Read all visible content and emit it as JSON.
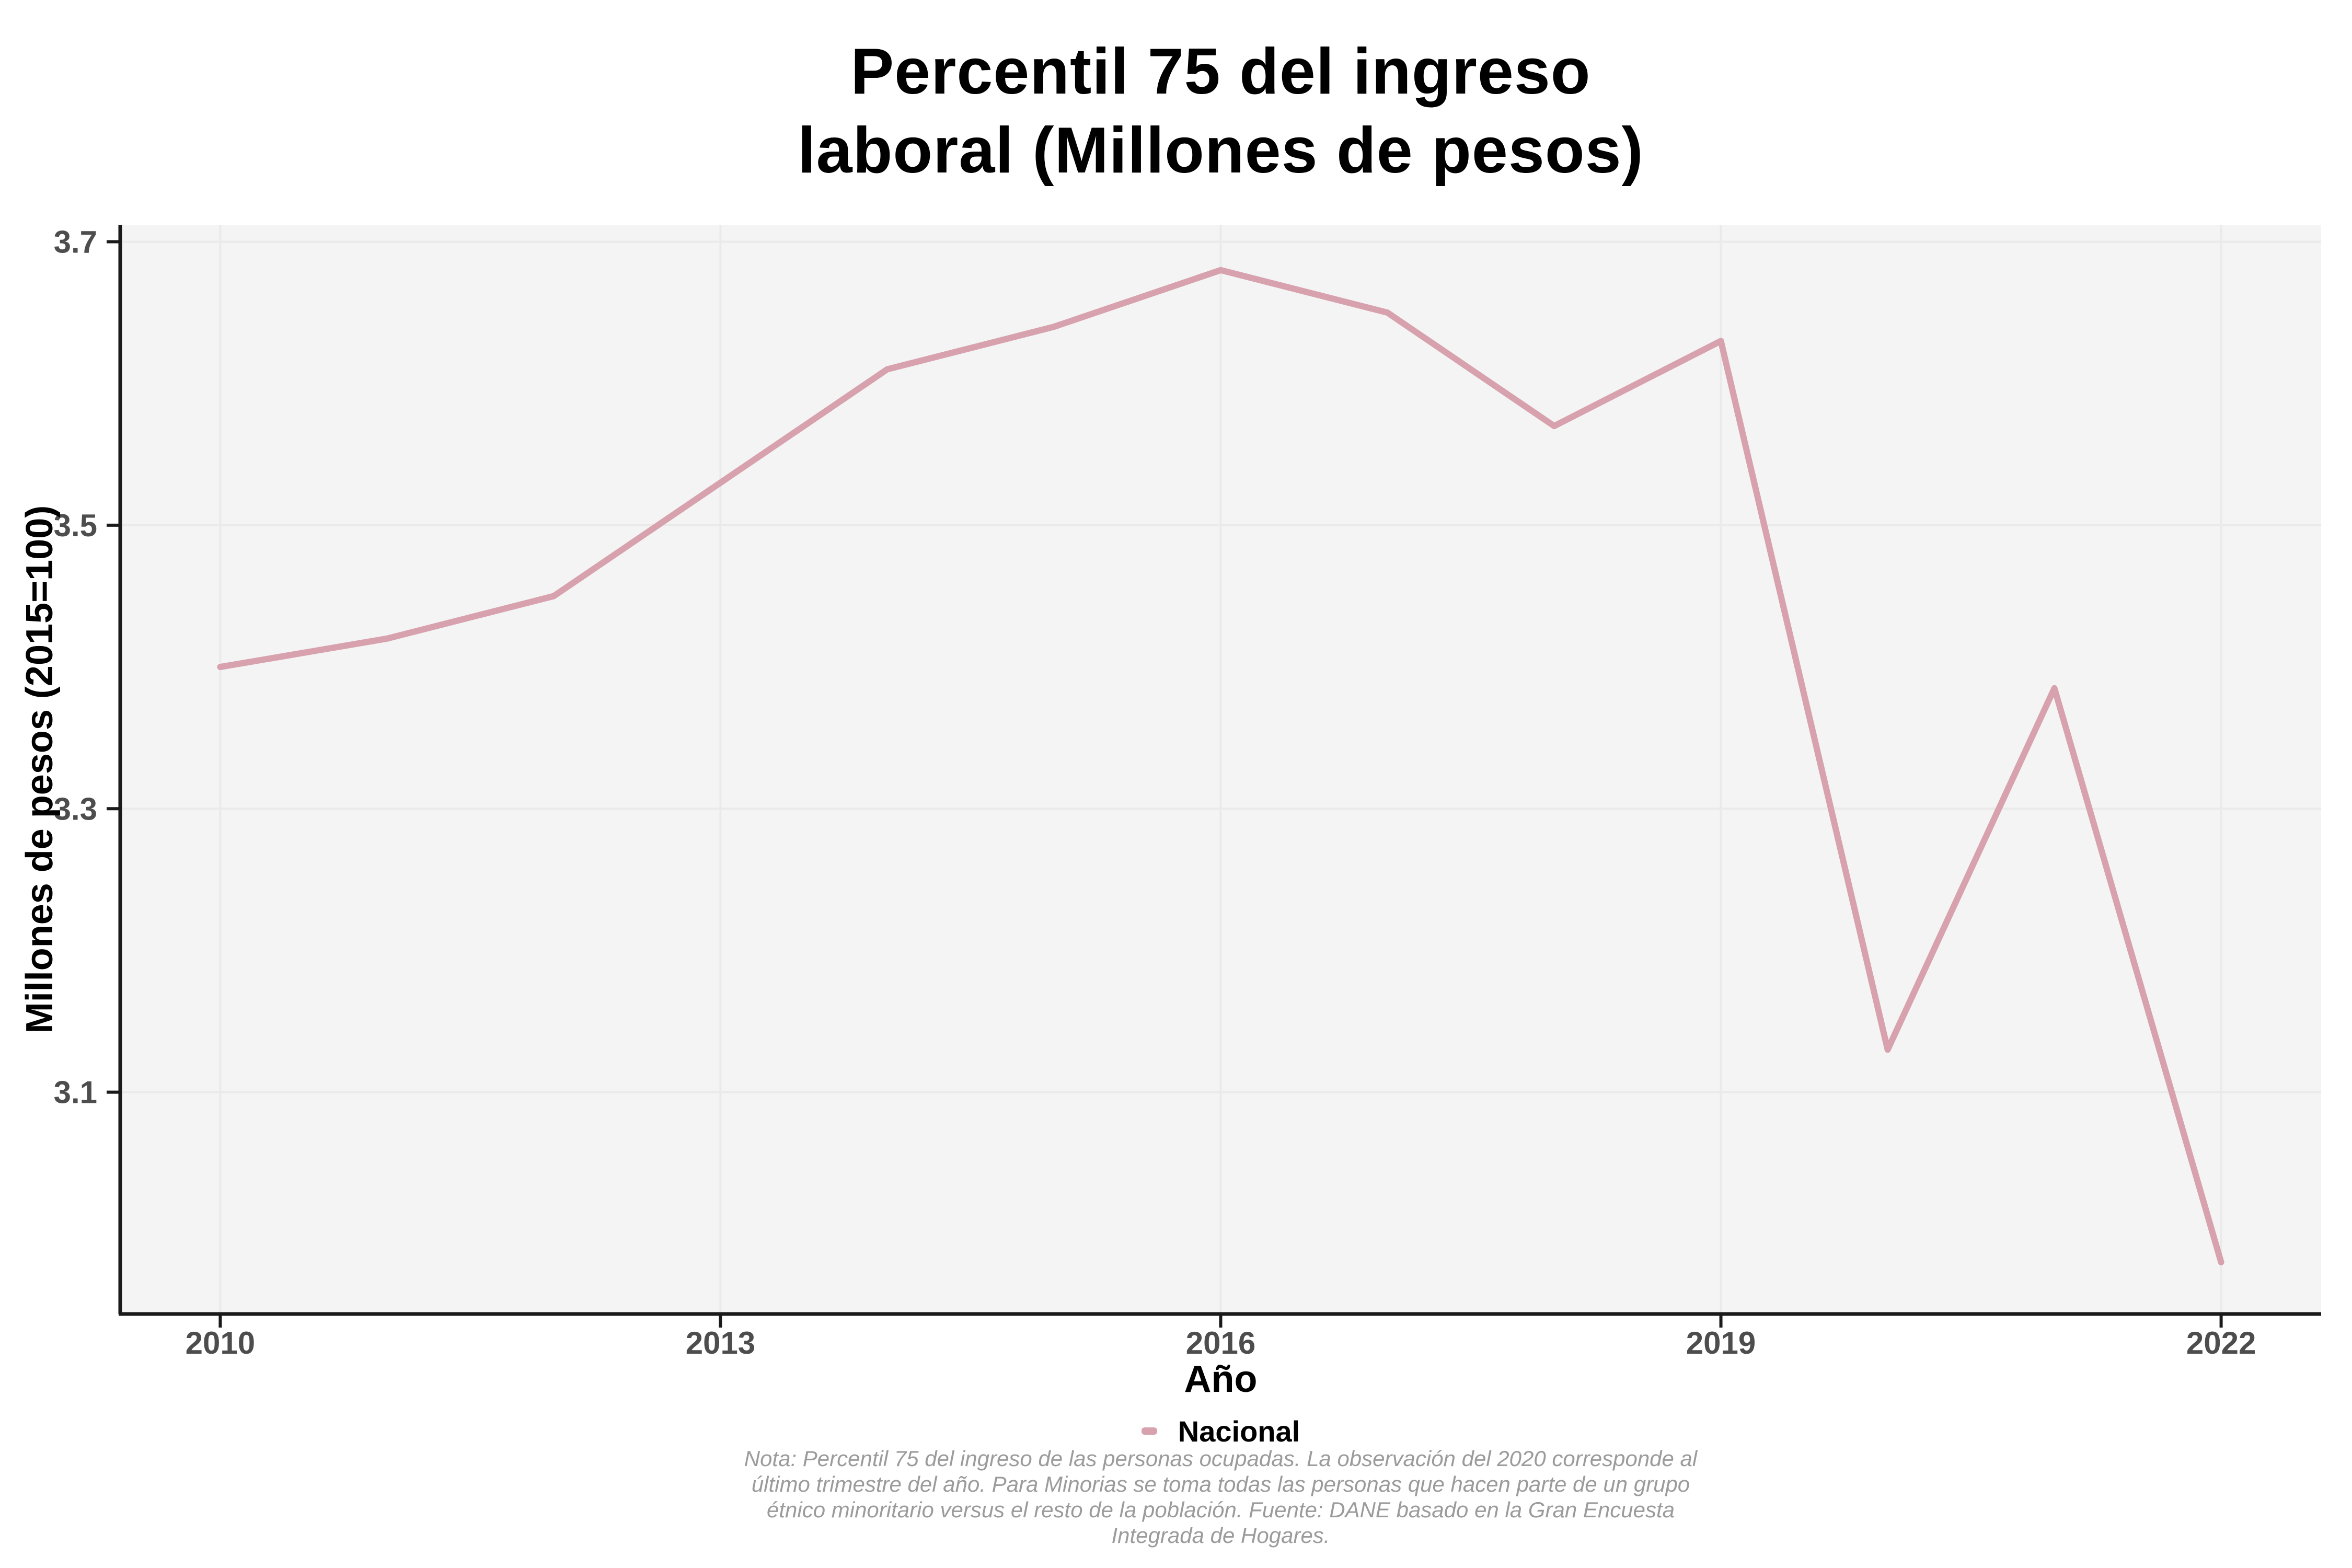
{
  "title": {
    "line1": "Percentil 75 del ingreso",
    "line2": "laboral (Millones de pesos)"
  },
  "axes": {
    "x": {
      "title": "Año",
      "tick_labels": [
        "2010",
        "2013",
        "2016",
        "2019",
        "2022"
      ],
      "tick_values": [
        2010,
        2013,
        2016,
        2019,
        2022
      ]
    },
    "y": {
      "title": "Millones de pesos (2015=100)",
      "tick_labels": [
        "3.7",
        "3.5",
        "3.3",
        "3.1"
      ],
      "tick_values": [
        3.7,
        3.5,
        3.3,
        3.1
      ]
    }
  },
  "legend": {
    "label": "Nacional",
    "key_color": "#D7A1AE",
    "position": "bottom"
  },
  "note": {
    "lines": [
      "Nota: Percentil 75 del ingreso de las personas ocupadas. La observación del 2020 corresponde al",
      "último trimestre del año. Para Minorias se toma todas las personas que hacen parte de un grupo",
      "étnico minoritario versus el resto de la población. Fuente: DANE basado en la Gran Encuesta",
      "Integrada de Hogares."
    ]
  },
  "colors": {
    "line": "#D7A1AE",
    "panel_background": "#F4F4F4",
    "gridline": "#EAEAEA",
    "axis_line": "#1A1A1A",
    "tick_label": "#4D4D4D",
    "title_text": "#000000",
    "note_text": "#9B9B9B",
    "page_background": "#FFFFFF"
  },
  "chart_data": {
    "type": "line",
    "title": "Percentil 75 del ingreso laboral (Millones de pesos)",
    "xlabel": "Año",
    "ylabel": "Millones de pesos (2015=100)",
    "x": [
      2010,
      2011,
      2012,
      2013,
      2014,
      2015,
      2016,
      2017,
      2018,
      2019,
      2020,
      2021,
      2022
    ],
    "series": [
      {
        "name": "Nacional",
        "color": "#D7A1AE",
        "values": [
          3.4,
          3.42,
          3.45,
          3.53,
          3.61,
          3.64,
          3.68,
          3.65,
          3.57,
          3.63,
          3.13,
          3.385,
          2.98
        ]
      }
    ],
    "xlim": [
      2009.4,
      2022.6
    ],
    "ylim": [
      2.9435,
      3.712
    ],
    "xticks": [
      2010,
      2013,
      2016,
      2019,
      2022
    ],
    "yticks": [
      3.7,
      3.5,
      3.3,
      3.1
    ],
    "grid": true,
    "legend_position": "bottom"
  }
}
